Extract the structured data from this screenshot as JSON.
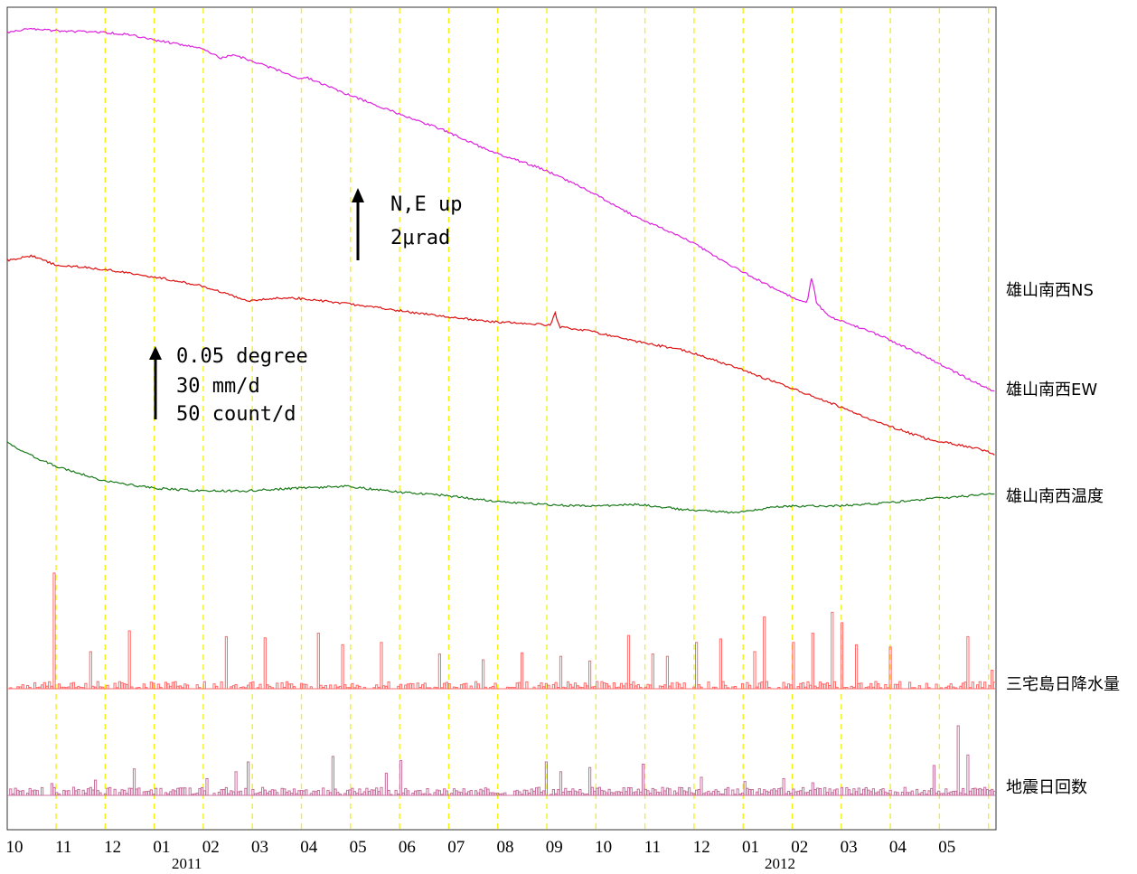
{
  "chart_data": {
    "type": "line",
    "title": "",
    "x_range": [
      "2010-10",
      "2012-05"
    ],
    "x_tick_labels": [
      "10",
      "11",
      "12",
      "01",
      "02",
      "03",
      "04",
      "05",
      "06",
      "07",
      "08",
      "09",
      "10",
      "11",
      "12",
      "01",
      "02",
      "03",
      "04",
      "05"
    ],
    "year_labels": [
      {
        "label": "2011",
        "at": "01"
      },
      {
        "label": "2012",
        "at": "01"
      }
    ],
    "grid": {
      "vertical_month_lines": true,
      "style": "dashed",
      "color": "#f2f20a"
    },
    "scale_bars": [
      {
        "name": "tilt",
        "lines": [
          "N,E up",
          "2μrad"
        ]
      },
      {
        "name": "other",
        "lines": [
          "0.05 degree",
          "30 mm/d",
          "50 count/d"
        ]
      }
    ],
    "series": [
      {
        "name": "雄山南西NS",
        "color": "#dd22dd",
        "kind": "line",
        "points": [
          [
            0,
            30
          ],
          [
            0.4,
            26
          ],
          [
            1,
            28
          ],
          [
            2,
            30
          ],
          [
            2.5,
            32
          ],
          [
            3,
            38
          ],
          [
            4,
            47
          ],
          [
            4.4,
            58
          ],
          [
            4.7,
            55
          ],
          [
            5.5,
            70
          ],
          [
            6,
            80
          ],
          [
            6.2,
            80
          ],
          [
            7,
            98
          ],
          [
            8,
            118
          ],
          [
            9,
            138
          ],
          [
            10,
            162
          ],
          [
            11,
            180
          ],
          [
            12,
            205
          ],
          [
            13,
            235
          ],
          [
            14,
            258
          ],
          [
            15,
            290
          ],
          [
            16,
            318
          ],
          [
            16.5,
            330
          ],
          [
            16.6,
            300
          ],
          [
            16.7,
            330
          ],
          [
            17,
            345
          ],
          [
            18,
            365
          ],
          [
            19,
            390
          ],
          [
            20,
            418
          ],
          [
            20.4,
            428
          ]
        ]
      },
      {
        "name": "雄山南西EW",
        "color": "#dd1111",
        "kind": "line",
        "points": [
          [
            0,
            240
          ],
          [
            0.5,
            235
          ],
          [
            1,
            245
          ],
          [
            2,
            250
          ],
          [
            3,
            258
          ],
          [
            4,
            268
          ],
          [
            5,
            285
          ],
          [
            5.5,
            282
          ],
          [
            6,
            282
          ],
          [
            7,
            288
          ],
          [
            8,
            295
          ],
          [
            9,
            302
          ],
          [
            10,
            308
          ],
          [
            10.8,
            310
          ],
          [
            11.2,
            312
          ],
          [
            11.3,
            298
          ],
          [
            11.4,
            314
          ],
          [
            12,
            318
          ],
          [
            13,
            330
          ],
          [
            14,
            340
          ],
          [
            15,
            358
          ],
          [
            16,
            378
          ],
          [
            17,
            398
          ],
          [
            18,
            420
          ],
          [
            19,
            438
          ],
          [
            20,
            448
          ],
          [
            20.4,
            455
          ]
        ]
      },
      {
        "name": "雄山南西温度",
        "color": "#1a7a1a",
        "kind": "line",
        "points": [
          [
            0,
            450
          ],
          [
            0.5,
            464
          ],
          [
            1,
            476
          ],
          [
            2,
            492
          ],
          [
            3,
            500
          ],
          [
            4,
            503
          ],
          [
            5,
            503
          ],
          [
            6,
            500
          ],
          [
            7,
            498
          ],
          [
            8,
            504
          ],
          [
            9,
            508
          ],
          [
            10,
            514
          ],
          [
            11,
            518
          ],
          [
            12,
            520
          ],
          [
            13,
            518
          ],
          [
            14,
            524
          ],
          [
            15,
            527
          ],
          [
            16,
            520
          ],
          [
            17,
            520
          ],
          [
            18,
            517
          ],
          [
            19,
            512
          ],
          [
            20,
            508
          ],
          [
            20.4,
            506
          ]
        ]
      },
      {
        "name": "三宅島日降水量",
        "color": "#ff6b6b",
        "kind": "bar",
        "unit": "mm/d",
        "peaks": [
          [
            0.95,
            100
          ],
          [
            1.7,
            32
          ],
          [
            2.5,
            50
          ],
          [
            4.5,
            45
          ],
          [
            5.3,
            44
          ],
          [
            6.4,
            48
          ],
          [
            6.9,
            38
          ],
          [
            7.7,
            40
          ],
          [
            8.9,
            30
          ],
          [
            9.8,
            25
          ],
          [
            10.6,
            31
          ],
          [
            11.4,
            28
          ],
          [
            12,
            24
          ],
          [
            12.8,
            46
          ],
          [
            13.3,
            30
          ],
          [
            13.6,
            28
          ],
          [
            14.2,
            40
          ],
          [
            14.7,
            43
          ],
          [
            15.4,
            32
          ],
          [
            15.6,
            62
          ],
          [
            16.2,
            40
          ],
          [
            16.6,
            48
          ],
          [
            17,
            66
          ],
          [
            17.2,
            57
          ],
          [
            17.5,
            38
          ],
          [
            18.2,
            36
          ],
          [
            19.8,
            45
          ],
          [
            20.3,
            16
          ]
        ]
      },
      {
        "name": "地震日回数",
        "color": "#c8709d",
        "kind": "bar",
        "unit": "count/d",
        "peaks": [
          [
            0.9,
            17
          ],
          [
            1.8,
            22
          ],
          [
            2.6,
            38
          ],
          [
            4.1,
            24
          ],
          [
            4.7,
            34
          ],
          [
            4.95,
            48
          ],
          [
            6.7,
            56
          ],
          [
            7.8,
            32
          ],
          [
            8.1,
            50
          ],
          [
            11.1,
            48
          ],
          [
            11.4,
            34
          ],
          [
            12,
            40
          ],
          [
            13.1,
            45
          ],
          [
            14.3,
            26
          ],
          [
            15.2,
            20
          ],
          [
            16,
            24
          ],
          [
            16.6,
            18
          ],
          [
            19.1,
            43
          ],
          [
            19.6,
            100
          ],
          [
            19.8,
            58
          ]
        ]
      }
    ]
  }
}
